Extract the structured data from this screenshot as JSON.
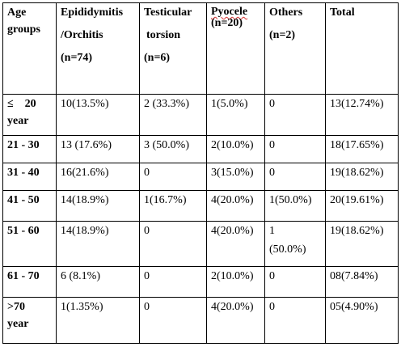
{
  "table": {
    "headers": {
      "age": [
        "Age",
        "groups"
      ],
      "epididymitis": [
        "Epididymitis",
        "/Orchitis",
        "(n=74)"
      ],
      "torsion": [
        "Testicular",
        "torsion",
        "(n=6)"
      ],
      "pyocele": [
        "Pyocele",
        "(n=20)"
      ],
      "others": [
        "Others",
        "(n=2)"
      ],
      "total": [
        "Total"
      ]
    },
    "rows": [
      {
        "age": "≤    20",
        "age2": "year",
        "epididymitis": "10(13.5%)",
        "torsion": "2 (33.3%)",
        "pyocele": "1(5.0%)",
        "others": "0",
        "others2": "",
        "total": "13(12.74%)"
      },
      {
        "age": "21 - 30",
        "age2": "",
        "epididymitis": "13 (17.6%)",
        "torsion": "3 (50.0%)",
        "pyocele": "2(10.0%)",
        "others": "0",
        "others2": "",
        "total": "18(17.65%)"
      },
      {
        "age": "31 - 40",
        "age2": "",
        "epididymitis": "16(21.6%)",
        "torsion": "0",
        "pyocele": "3(15.0%)",
        "others": "0",
        "others2": "",
        "total": "19(18.62%)"
      },
      {
        "age": "41 - 50",
        "age2": "",
        "epididymitis": "14(18.9%)",
        "torsion": "1(16.7%)",
        "pyocele": "4(20.0%)",
        "others": "1(50.0%)",
        "others2": "",
        "total": "20(19.61%)"
      },
      {
        "age": "51 - 60",
        "age2": "",
        "epididymitis": "14(18.9%)",
        "torsion": "0",
        "pyocele": "4(20.0%)",
        "others": "1",
        "others2": "(50.0%)",
        "total": "19(18.62%)"
      },
      {
        "age": "61 - 70",
        "age2": "",
        "epididymitis": "6 (8.1%)",
        "torsion": "0",
        "pyocele": "2(10.0%)",
        "others": "0",
        "others2": "",
        "total": "08(7.84%)"
      },
      {
        "age": ">70",
        "age2": "year",
        "epididymitis": "1(1.35%)",
        "torsion": "0",
        "pyocele": "4(20.0%)",
        "others": "0",
        "others2": "",
        "total": "05(4.90%)"
      }
    ]
  },
  "colors": {
    "border": "#000000",
    "spellcheck_underline": "#d83030"
  }
}
